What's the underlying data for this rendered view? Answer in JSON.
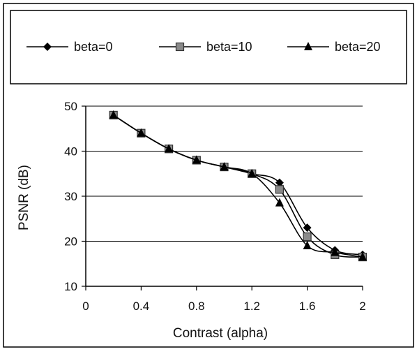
{
  "chart_data": {
    "type": "line",
    "xlabel": "Contrast (alpha)",
    "ylabel": "PSNR (dB)",
    "xlim": [
      0,
      2
    ],
    "ylim": [
      10,
      50
    ],
    "x_ticks": [
      "0",
      "0.4",
      "0.8",
      "1.2",
      "1.6",
      "2"
    ],
    "y_ticks": [
      "10",
      "20",
      "30",
      "40",
      "50"
    ],
    "horizontal_grid": true,
    "legend_position": "top",
    "x": [
      0.2,
      0.4,
      0.6,
      0.8,
      1.0,
      1.2,
      1.4,
      1.6,
      1.8,
      2.0
    ],
    "series": [
      {
        "name": "beta=0",
        "marker": "diamond",
        "color": "#000000",
        "values": [
          48,
          44,
          40.5,
          38,
          36.5,
          35,
          33,
          23,
          18,
          17
        ]
      },
      {
        "name": "beta=10",
        "marker": "square",
        "color": "#555555",
        "values": [
          48,
          44,
          40.5,
          38,
          36.5,
          35,
          31.5,
          21,
          17,
          16.5
        ]
      },
      {
        "name": "beta=20",
        "marker": "triangle",
        "color": "#000000",
        "values": [
          48,
          44,
          40.5,
          38,
          36.5,
          35,
          28.5,
          19,
          17.5,
          16.5
        ]
      }
    ]
  }
}
